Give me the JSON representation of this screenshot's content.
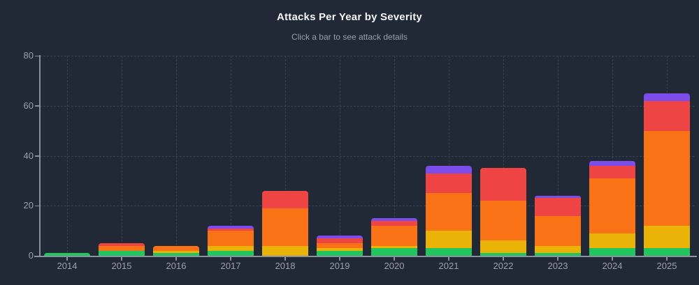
{
  "header": {
    "title": "Attacks Per Year by Severity",
    "subtitle": "Click a bar to see attack details"
  },
  "chart_data": {
    "type": "bar",
    "stacked": true,
    "title": "Attacks Per Year by Severity",
    "subtitle": "Click a bar to see attack details",
    "categories": [
      "2014",
      "2015",
      "2016",
      "2017",
      "2018",
      "2019",
      "2020",
      "2021",
      "2022",
      "2023",
      "2024",
      "2025"
    ],
    "series": [
      {
        "name": "severity-green",
        "color": "#22c55e",
        "values": [
          1,
          2,
          1,
          2,
          0,
          2,
          3,
          3,
          1,
          1,
          3,
          3
        ]
      },
      {
        "name": "severity-amber",
        "color": "#eab308",
        "values": [
          0,
          0,
          1,
          2,
          4,
          1,
          1,
          7,
          5,
          3,
          6,
          9
        ]
      },
      {
        "name": "severity-orange",
        "color": "#f97316",
        "values": [
          0,
          2,
          2,
          6,
          15,
          2,
          8,
          15,
          16,
          12,
          22,
          38
        ]
      },
      {
        "name": "severity-red",
        "color": "#ef4444",
        "values": [
          0,
          1,
          0,
          1,
          7,
          2,
          2,
          8,
          13,
          7,
          5,
          12
        ]
      },
      {
        "name": "severity-purple",
        "color": "#7c4dea",
        "values": [
          0,
          0,
          0,
          1,
          0,
          1,
          1,
          3,
          0,
          1,
          2,
          3
        ]
      }
    ],
    "stack_totals": [
      1,
      5,
      4,
      12,
      26,
      8,
      15,
      36,
      35,
      24,
      38,
      65
    ],
    "xlabel": "",
    "ylabel": "",
    "ylim": [
      0,
      80
    ],
    "yticks": [
      "0",
      "20",
      "40",
      "60",
      "80"
    ],
    "grid": "dashed, horizontal at y-ticks and vertical at each category center",
    "legend": "none"
  },
  "style": {
    "background": "#212836",
    "axis_color": "#8a919b",
    "grid_color": "#3a4250",
    "tick_label_color": "#9aa1ac",
    "title_color": "#f3f5f7",
    "subtitle_color": "#99a0ab",
    "bar_colors": [
      "#22c55e",
      "#eab308",
      "#f97316",
      "#ef4444",
      "#7c4dea"
    ]
  }
}
